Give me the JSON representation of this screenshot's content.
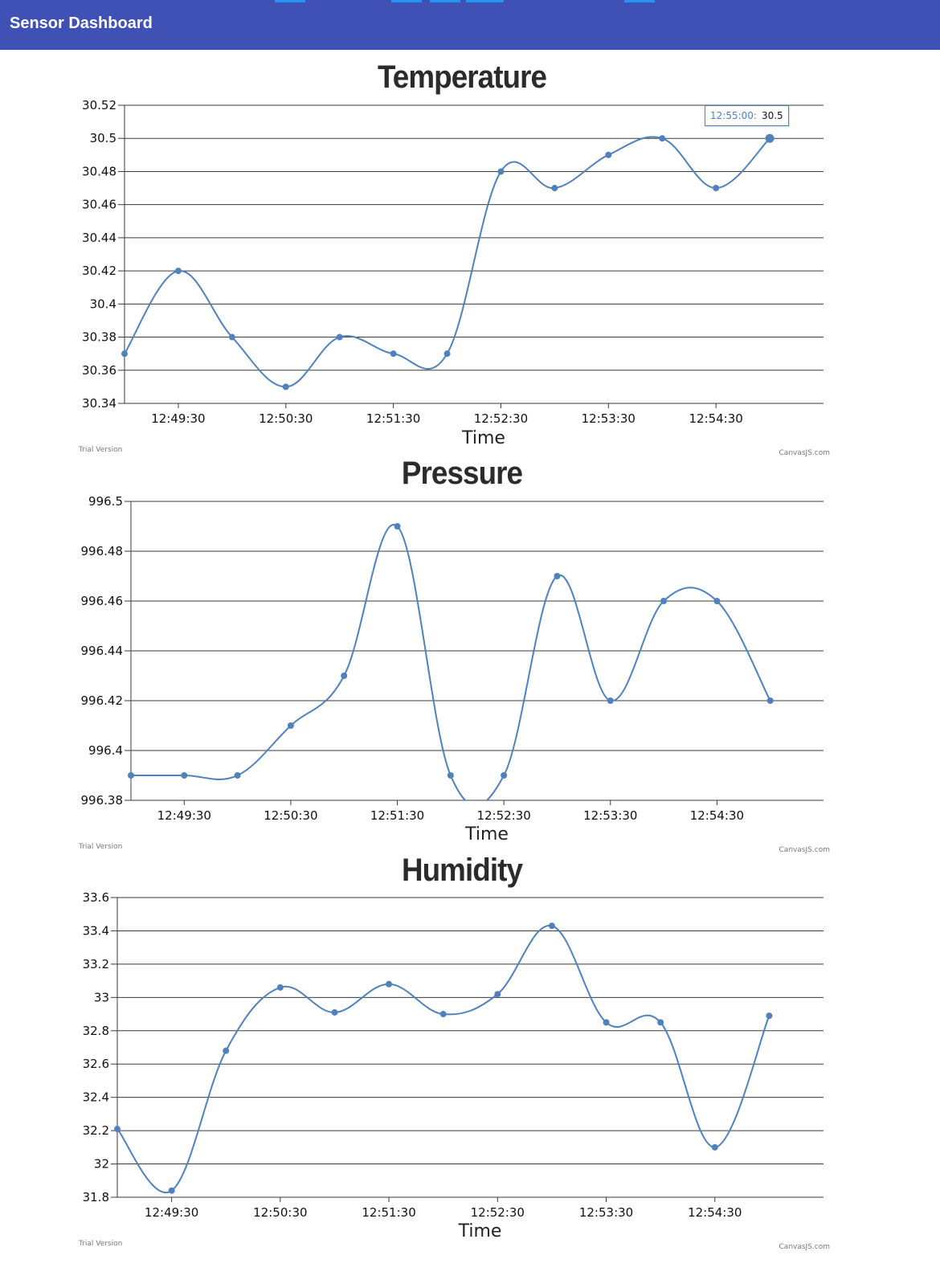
{
  "header": {
    "title": "Sensor Dashboard"
  },
  "colors": {
    "header": "#3f51b5",
    "line": "#4f81bc",
    "grid": "#3a3a3a"
  },
  "tooltip": {
    "label": "12:55:00:",
    "value": "30.5"
  },
  "charts": [
    {
      "title": "Temperature",
      "trial_label": "Trial Version",
      "credit_label": "CanvasJS.com",
      "chart_data": {
        "type": "line",
        "title": "Temperature",
        "xlabel": "Time",
        "ylabel": "",
        "ylim": [
          30.34,
          30.52
        ],
        "yticks": [
          "30.34",
          "30.36",
          "30.38",
          "30.4",
          "30.42",
          "30.44",
          "30.46",
          "30.48",
          "30.5",
          "30.52"
        ],
        "xlim": [
          "12:49:00",
          "12:55:30"
        ],
        "xticks": [
          "12:49:30",
          "12:50:30",
          "12:51:30",
          "12:52:30",
          "12:53:30",
          "12:54:30"
        ],
        "x": [
          "12:49:00",
          "12:49:30",
          "12:50:00",
          "12:50:30",
          "12:51:00",
          "12:51:30",
          "12:52:00",
          "12:52:30",
          "12:53:00",
          "12:53:30",
          "12:54:00",
          "12:54:30",
          "12:55:00"
        ],
        "values": [
          30.37,
          30.42,
          30.38,
          30.35,
          30.38,
          30.37,
          30.37,
          30.48,
          30.47,
          30.49,
          30.5,
          30.47,
          30.5
        ]
      }
    },
    {
      "title": "Pressure",
      "trial_label": "Trial Version",
      "credit_label": "CanvasJS.com",
      "chart_data": {
        "type": "line",
        "title": "Pressure",
        "xlabel": "Time",
        "ylabel": "",
        "ylim": [
          996.38,
          996.5
        ],
        "yticks": [
          "996.38",
          "996.4",
          "996.42",
          "996.44",
          "996.46",
          "996.48",
          "996.5"
        ],
        "xlim": [
          "12:49:00",
          "12:55:30"
        ],
        "xticks": [
          "12:49:30",
          "12:50:30",
          "12:51:30",
          "12:52:30",
          "12:53:30",
          "12:54:30"
        ],
        "x": [
          "12:49:00",
          "12:49:30",
          "12:50:00",
          "12:50:30",
          "12:51:00",
          "12:51:30",
          "12:52:00",
          "12:52:30",
          "12:53:00",
          "12:53:30",
          "12:54:00",
          "12:54:30",
          "12:55:00"
        ],
        "values": [
          996.39,
          996.39,
          996.39,
          996.41,
          996.43,
          996.49,
          996.39,
          996.39,
          996.47,
          996.42,
          996.46,
          996.46,
          996.42
        ]
      }
    },
    {
      "title": "Humidity",
      "trial_label": "Trial Version",
      "credit_label": "CanvasJS.com",
      "chart_data": {
        "type": "line",
        "title": "Humidity",
        "xlabel": "Time",
        "ylabel": "",
        "ylim": [
          31.8,
          33.6
        ],
        "yticks": [
          "31.8",
          "32",
          "32.2",
          "32.4",
          "32.6",
          "32.8",
          "33",
          "33.2",
          "33.4",
          "33.6"
        ],
        "xlim": [
          "12:49:00",
          "12:55:30"
        ],
        "xticks": [
          "12:49:30",
          "12:50:30",
          "12:51:30",
          "12:52:30",
          "12:53:30",
          "12:54:30"
        ],
        "x": [
          "12:49:00",
          "12:49:30",
          "12:50:00",
          "12:50:30",
          "12:51:00",
          "12:51:30",
          "12:52:00",
          "12:52:30",
          "12:53:00",
          "12:53:30",
          "12:54:00",
          "12:54:30",
          "12:55:00"
        ],
        "values": [
          32.21,
          31.84,
          32.68,
          33.06,
          32.91,
          33.08,
          32.9,
          33.02,
          33.43,
          32.85,
          32.85,
          32.1,
          32.89
        ]
      }
    }
  ]
}
